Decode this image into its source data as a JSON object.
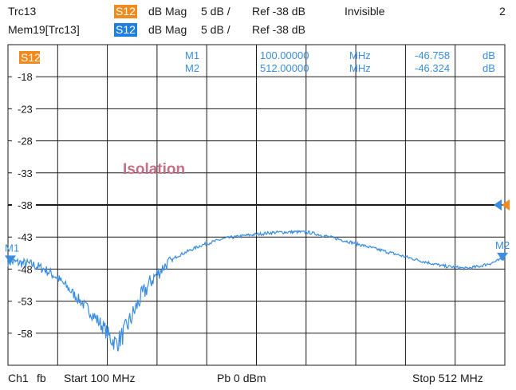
{
  "header": {
    "trace1": {
      "name": "Trc13",
      "param": "S12",
      "format": "dB Mag",
      "scale": "5 dB /",
      "ref": "Ref -38 dB",
      "state": "Invisible"
    },
    "trace2": {
      "name": "Mem19[Trc13]",
      "param": "S12",
      "format": "dB Mag",
      "scale": "5 dB /",
      "ref": "Ref -38 dB"
    },
    "window_number": "2"
  },
  "footer": {
    "channel": "Ch1",
    "fb": "fb",
    "start": "Start  100 MHz",
    "power": "Pb   0 dBm",
    "stop": "Stop  512 MHz"
  },
  "colors": {
    "trace_blue": "#3a8de0",
    "marker_orange": "#f28a1e",
    "badge_blue": "#1e7fe0",
    "annotation": "#c47086",
    "grid": "#1a1a1a"
  },
  "chart_data": {
    "type": "line",
    "title": "",
    "annotation": "Isolation",
    "param_label": "S12",
    "xlabel": "",
    "ylabel": "",
    "xlim": [
      100,
      512
    ],
    "ylim": [
      -63,
      -13
    ],
    "y_ticks": [
      -18,
      -23,
      -28,
      -33,
      -38,
      -43,
      -48,
      -53,
      -58
    ],
    "grid": true,
    "x_divisions": 10,
    "y_divisions": 10,
    "reference_level": -38,
    "markers": [
      {
        "name": "M1",
        "x_label": "100.00000",
        "x_unit": "MHz",
        "y_label": "-46.758",
        "y_unit": "dB",
        "x": 100,
        "y": -46.758
      },
      {
        "name": "M2",
        "x_label": "512.00000",
        "x_unit": "MHz",
        "y_label": "-46.324",
        "y_unit": "dB",
        "x": 512,
        "y": -46.324
      }
    ],
    "series": [
      {
        "x": [
          100,
          110,
          120,
          130,
          140,
          150,
          160,
          170,
          180,
          185,
          190,
          195,
          200,
          210,
          220,
          230,
          240,
          260,
          280,
          300,
          320,
          340,
          350,
          360,
          380,
          400,
          420,
          440,
          460,
          480,
          490,
          500,
          512
        ],
        "y": [
          -46.8,
          -47.0,
          -47.3,
          -48.0,
          -49.2,
          -51.0,
          -53.0,
          -55.0,
          -57.3,
          -58.8,
          -59.6,
          -58.3,
          -56.5,
          -52.5,
          -49.5,
          -47.5,
          -46.0,
          -44.3,
          -43.2,
          -42.7,
          -42.3,
          -42.2,
          -42.3,
          -42.7,
          -43.6,
          -44.6,
          -45.6,
          -46.6,
          -47.5,
          -47.9,
          -47.6,
          -47.1,
          -46.3
        ]
      }
    ]
  }
}
